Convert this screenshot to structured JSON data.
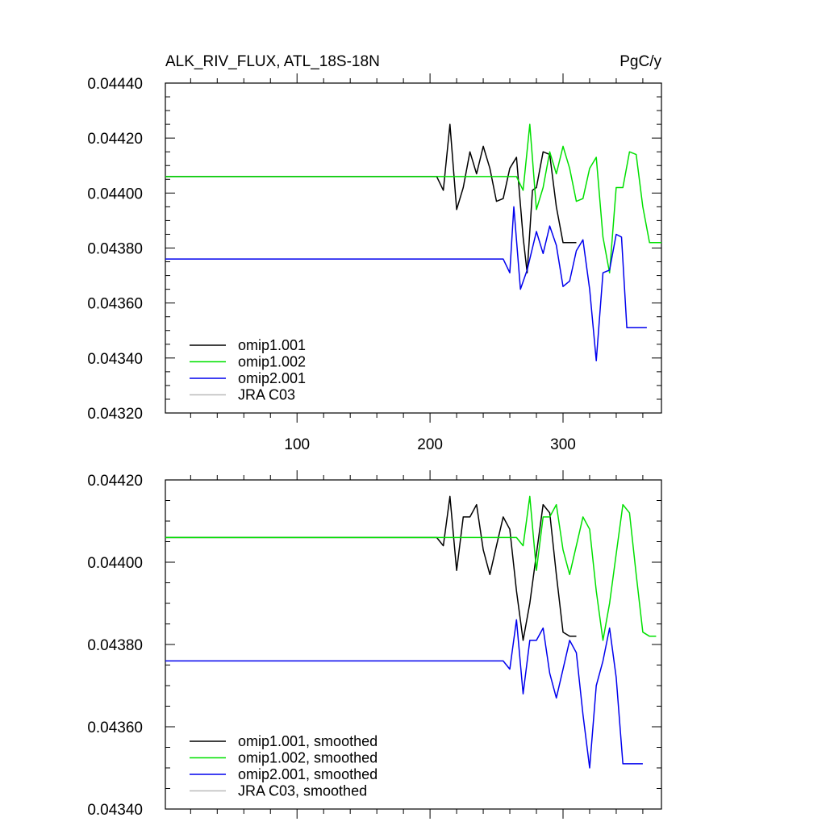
{
  "title": "ALK_RIV_FLUX, ATL_18S-18N",
  "units": "PgC/y",
  "colors": {
    "omip1_001": "#000000",
    "omip1_002": "#00e000",
    "omip2_001": "#0000ee",
    "jra_c03": "#bbbbbb"
  },
  "chart_data": [
    {
      "type": "line",
      "xlim": [
        1,
        374
      ],
      "ylim": [
        0.0432,
        0.0444
      ],
      "xticks": [
        100,
        200,
        300
      ],
      "xtick_labels": [
        "100",
        "200",
        "300"
      ],
      "yticks": [
        0.0432,
        0.0434,
        0.0436,
        0.0438,
        0.044,
        0.0442,
        0.0444
      ],
      "ytick_labels": [
        "0.04320",
        "0.04340",
        "0.04360",
        "0.04380",
        "0.04400",
        "0.04420",
        "0.04440"
      ],
      "legend_position": "bottom-left",
      "series": [
        {
          "name": "omip1.001",
          "color_key": "omip1_001",
          "x": [
            1,
            200,
            205,
            210,
            215,
            220,
            225,
            230,
            235,
            240,
            245,
            250,
            255,
            260,
            265,
            270,
            273,
            277,
            280,
            285,
            290,
            295,
            300,
            310
          ],
          "y": [
            0.04406,
            0.04406,
            0.04406,
            0.04401,
            0.04425,
            0.04394,
            0.04402,
            0.04415,
            0.04407,
            0.04417,
            0.04409,
            0.04397,
            0.04398,
            0.04409,
            0.04413,
            0.04384,
            0.04371,
            0.04401,
            0.04402,
            0.04415,
            0.04414,
            0.04395,
            0.04382,
            0.04382
          ]
        },
        {
          "name": "omip1.002",
          "color_key": "omip1_002",
          "x": [
            1,
            265,
            270,
            275,
            280,
            285,
            290,
            295,
            300,
            305,
            310,
            315,
            320,
            325,
            330,
            335,
            340,
            345,
            350,
            355,
            360,
            365,
            374
          ],
          "y": [
            0.04406,
            0.04406,
            0.04401,
            0.04425,
            0.04394,
            0.04402,
            0.04415,
            0.04407,
            0.04417,
            0.04409,
            0.04397,
            0.04398,
            0.04409,
            0.04413,
            0.04384,
            0.04371,
            0.04402,
            0.04402,
            0.04415,
            0.04414,
            0.04395,
            0.04382,
            0.04382
          ]
        },
        {
          "name": "omip2.001",
          "color_key": "omip2_001",
          "x": [
            1,
            250,
            255,
            260,
            263,
            268,
            273,
            280,
            285,
            290,
            295,
            300,
            305,
            310,
            315,
            320,
            325,
            330,
            335,
            340,
            344,
            348,
            363
          ],
          "y": [
            0.04376,
            0.04376,
            0.04376,
            0.04371,
            0.04395,
            0.04365,
            0.04372,
            0.04386,
            0.04378,
            0.04388,
            0.04381,
            0.04366,
            0.04368,
            0.04379,
            0.04383,
            0.04365,
            0.04339,
            0.04371,
            0.04372,
            0.04385,
            0.04384,
            0.04351,
            0.04351
          ]
        },
        {
          "name": "JRA C03",
          "color_key": "jra_c03",
          "x": [],
          "y": []
        }
      ]
    },
    {
      "type": "line",
      "xlim": [
        1,
        374
      ],
      "ylim": [
        0.0434,
        0.0442
      ],
      "xticks": [
        100,
        200,
        300
      ],
      "xtick_labels": [],
      "yticks": [
        0.0434,
        0.0436,
        0.0438,
        0.044,
        0.0442
      ],
      "ytick_labels": [
        "0.04340",
        "0.04360",
        "0.04380",
        "0.04400",
        "0.04420"
      ],
      "legend_position": "bottom-left",
      "series": [
        {
          "name": "omip1.001, smoothed",
          "color_key": "omip1_001",
          "x": [
            1,
            200,
            205,
            210,
            215,
            220,
            225,
            230,
            235,
            240,
            245,
            250,
            255,
            260,
            265,
            270,
            275,
            280,
            285,
            290,
            295,
            300,
            305,
            310
          ],
          "y": [
            0.04406,
            0.04406,
            0.04406,
            0.04404,
            0.04416,
            0.04398,
            0.04411,
            0.04411,
            0.04414,
            0.04403,
            0.04397,
            0.04404,
            0.04411,
            0.04408,
            0.04393,
            0.04381,
            0.0439,
            0.04402,
            0.04414,
            0.04412,
            0.04397,
            0.04383,
            0.04382,
            0.04382
          ]
        },
        {
          "name": "omip1.002, smoothed",
          "color_key": "omip1_002",
          "x": [
            1,
            265,
            270,
            275,
            280,
            285,
            290,
            295,
            300,
            305,
            310,
            315,
            320,
            325,
            330,
            335,
            340,
            345,
            350,
            355,
            360,
            365,
            370
          ],
          "y": [
            0.04406,
            0.04406,
            0.04404,
            0.04416,
            0.04398,
            0.04411,
            0.04411,
            0.04414,
            0.04403,
            0.04397,
            0.04404,
            0.04411,
            0.04408,
            0.04393,
            0.04381,
            0.0439,
            0.04402,
            0.04414,
            0.04412,
            0.04397,
            0.04383,
            0.04382,
            0.04382
          ]
        },
        {
          "name": "omip2.001, smoothed",
          "color_key": "omip2_001",
          "x": [
            1,
            250,
            255,
            260,
            265,
            270,
            275,
            280,
            285,
            290,
            295,
            300,
            305,
            310,
            315,
            320,
            325,
            330,
            335,
            340,
            345,
            350,
            360
          ],
          "y": [
            0.04376,
            0.04376,
            0.04376,
            0.04374,
            0.04386,
            0.04368,
            0.04381,
            0.04381,
            0.04384,
            0.04373,
            0.04367,
            0.04374,
            0.04381,
            0.04378,
            0.04363,
            0.0435,
            0.0437,
            0.04376,
            0.04384,
            0.04372,
            0.04351,
            0.04351,
            0.04351
          ]
        },
        {
          "name": "JRA C03, smoothed",
          "color_key": "jra_c03",
          "x": [],
          "y": []
        }
      ]
    }
  ]
}
